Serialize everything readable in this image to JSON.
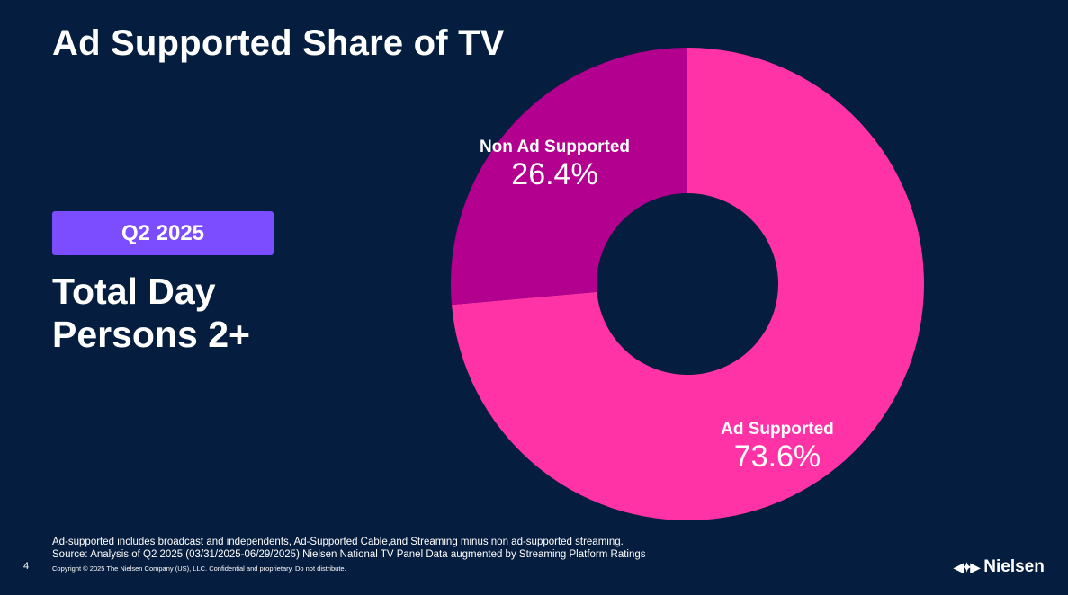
{
  "header": {
    "title": "Ad Supported Share of TV"
  },
  "period_badge": "Q2 2025",
  "audience": {
    "line1": "Total Day",
    "line2": "Persons 2+"
  },
  "chart_data": {
    "type": "pie",
    "donut": true,
    "series": [
      {
        "name": "Ad Supported",
        "value": 73.6,
        "label": "73.6%",
        "color": "#ff33a6"
      },
      {
        "name": "Non Ad Supported",
        "value": 26.4,
        "label": "26.4%",
        "color": "#b3008f"
      }
    ]
  },
  "footnotes": {
    "line1": "Ad-supported includes broadcast and independents, Ad-Supported Cable,and Streaming minus non ad-supported streaming.",
    "line2": "Source: Analysis of Q2 2025 (03/31/2025-06/29/2025)  Nielsen National TV Panel Data augmented by Streaming Platform Ratings",
    "copyright": "Copyright © 2025 The Nielsen Company (US), LLC. Confidential and proprietary. Do not distribute."
  },
  "page_number": "4",
  "brand": {
    "logo_text": "Nielsen",
    "icon": "nielsen-logo-icon"
  }
}
